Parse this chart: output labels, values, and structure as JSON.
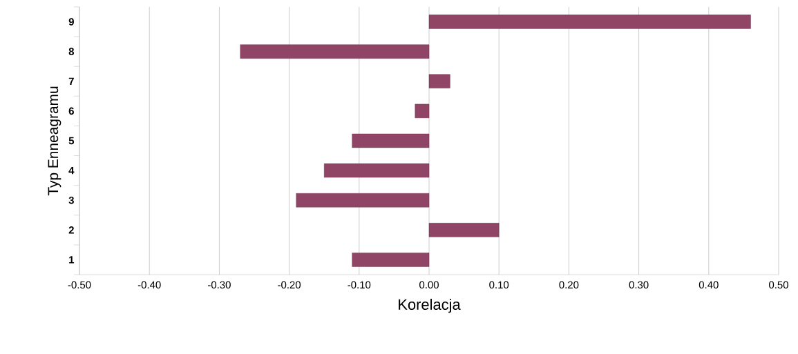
{
  "chart_data": {
    "type": "bar",
    "orientation": "horizontal",
    "xlabel": "Korelacja",
    "ylabel": "Typ Enneagramu",
    "categories": [
      "9",
      "8",
      "7",
      "6",
      "5",
      "4",
      "3",
      "2",
      "1"
    ],
    "values": [
      0.46,
      -0.27,
      0.03,
      -0.02,
      -0.11,
      -0.15,
      -0.19,
      0.1,
      -0.11
    ],
    "color": "#904466",
    "xlim": [
      -0.5,
      0.5
    ],
    "xticks": [
      {
        "value": -0.5,
        "label": "-0.50"
      },
      {
        "value": -0.4,
        "label": "-0.40"
      },
      {
        "value": -0.3,
        "label": "-0.30"
      },
      {
        "value": -0.2,
        "label": "-0.20"
      },
      {
        "value": -0.1,
        "label": "-0.10"
      },
      {
        "value": 0,
        "label": "0.00"
      },
      {
        "value": 0.1,
        "label": "0.10"
      },
      {
        "value": 0.2,
        "label": "0.20"
      },
      {
        "value": 0.3,
        "label": "0.30"
      },
      {
        "value": 0.4,
        "label": "0.40"
      },
      {
        "value": 0.5,
        "label": "0.50"
      }
    ],
    "grid": "x"
  }
}
